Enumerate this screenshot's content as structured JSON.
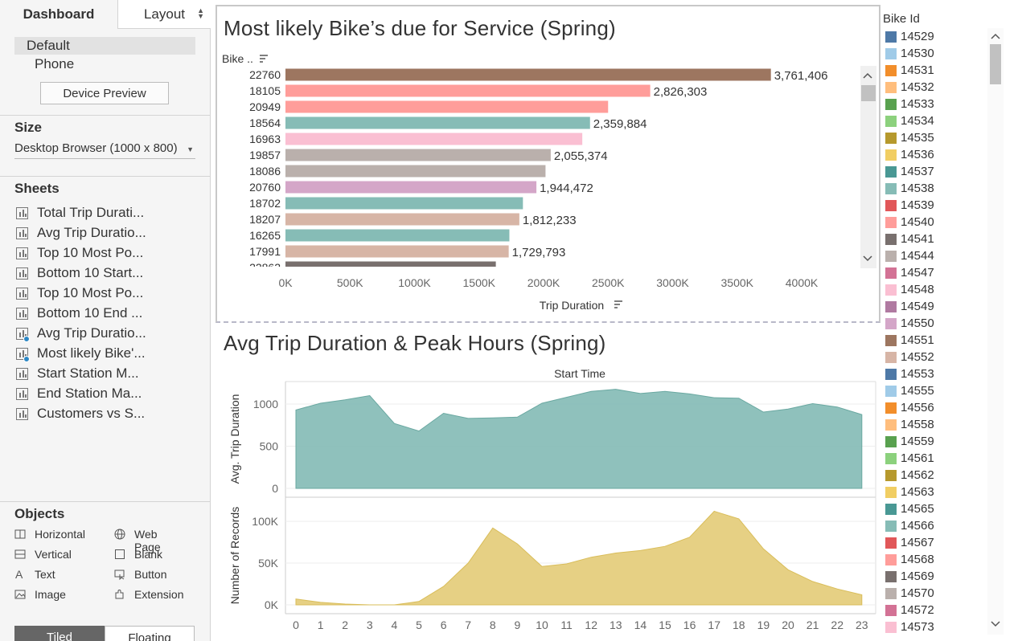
{
  "tabs": {
    "dashboard": "Dashboard",
    "layout": "Layout"
  },
  "device": {
    "default": "Default",
    "phone": "Phone",
    "preview_button": "Device Preview"
  },
  "size": {
    "title": "Size",
    "value": "Desktop Browser (1000 x 800)"
  },
  "sheets": {
    "title": "Sheets",
    "items": [
      {
        "label": "Total Trip Durati...",
        "checked": false
      },
      {
        "label": "Avg Trip Duratio...",
        "checked": false
      },
      {
        "label": "Top 10 Most Po...",
        "checked": false
      },
      {
        "label": "Bottom 10 Start...",
        "checked": false
      },
      {
        "label": "Top 10 Most Po...",
        "checked": false
      },
      {
        "label": "Bottom 10 End ...",
        "checked": false
      },
      {
        "label": "Avg Trip Duratio...",
        "checked": true
      },
      {
        "label": "Most likely Bike'...",
        "checked": true
      },
      {
        "label": "Start Station M...",
        "checked": false
      },
      {
        "label": "End Station Ma...",
        "checked": false
      },
      {
        "label": "Customers vs S...",
        "checked": false
      }
    ]
  },
  "objects": {
    "title": "Objects",
    "items": [
      {
        "label": "Horizontal",
        "icon": "horizontal-icon"
      },
      {
        "label": "Web Page",
        "icon": "globe-icon"
      },
      {
        "label": "Vertical",
        "icon": "vertical-icon"
      },
      {
        "label": "Blank",
        "icon": "blank-icon"
      },
      {
        "label": "Text",
        "icon": "text-icon"
      },
      {
        "label": "Button",
        "icon": "button-icon"
      },
      {
        "label": "Image",
        "icon": "image-icon"
      },
      {
        "label": "Extension",
        "icon": "extension-icon"
      }
    ]
  },
  "layout_toggle": {
    "tiled": "Tiled",
    "floating": "Floating"
  },
  "legend": {
    "title": "Bike Id",
    "items": [
      {
        "id": "14529",
        "color": "#4e79a7"
      },
      {
        "id": "14530",
        "color": "#a0cbe8"
      },
      {
        "id": "14531",
        "color": "#f28e2b"
      },
      {
        "id": "14532",
        "color": "#ffbe7d"
      },
      {
        "id": "14533",
        "color": "#59a14f"
      },
      {
        "id": "14534",
        "color": "#8cd17d"
      },
      {
        "id": "14535",
        "color": "#b6992d"
      },
      {
        "id": "14536",
        "color": "#f1ce63"
      },
      {
        "id": "14537",
        "color": "#499894"
      },
      {
        "id": "14538",
        "color": "#86bcb6"
      },
      {
        "id": "14539",
        "color": "#e15759"
      },
      {
        "id": "14540",
        "color": "#ff9d9a"
      },
      {
        "id": "14541",
        "color": "#79706e"
      },
      {
        "id": "14544",
        "color": "#bab0ac"
      },
      {
        "id": "14547",
        "color": "#d37295"
      },
      {
        "id": "14548",
        "color": "#fabfd2"
      },
      {
        "id": "14549",
        "color": "#b07aa1"
      },
      {
        "id": "14550",
        "color": "#d4a6c8"
      },
      {
        "id": "14551",
        "color": "#9d7660"
      },
      {
        "id": "14552",
        "color": "#d7b5a6"
      },
      {
        "id": "14553",
        "color": "#4e79a7"
      },
      {
        "id": "14555",
        "color": "#a0cbe8"
      },
      {
        "id": "14556",
        "color": "#f28e2b"
      },
      {
        "id": "14558",
        "color": "#ffbe7d"
      },
      {
        "id": "14559",
        "color": "#59a14f"
      },
      {
        "id": "14561",
        "color": "#8cd17d"
      },
      {
        "id": "14562",
        "color": "#b6992d"
      },
      {
        "id": "14563",
        "color": "#f1ce63"
      },
      {
        "id": "14565",
        "color": "#499894"
      },
      {
        "id": "14566",
        "color": "#86bcb6"
      },
      {
        "id": "14567",
        "color": "#e15759"
      },
      {
        "id": "14568",
        "color": "#ff9d9a"
      },
      {
        "id": "14569",
        "color": "#79706e"
      },
      {
        "id": "14570",
        "color": "#bab0ac"
      },
      {
        "id": "14572",
        "color": "#d37295"
      },
      {
        "id": "14573",
        "color": "#fabfd2"
      }
    ]
  },
  "chart_data": [
    {
      "type": "bar",
      "orientation": "horizontal",
      "title": "Most likely Bike’s due for Service (Spring)",
      "category_header": "Bike ..",
      "xlabel": "Trip Duration",
      "xlim": [
        0,
        4400000
      ],
      "x_ticks": [
        "0K",
        "500K",
        "1000K",
        "1500K",
        "2000K",
        "2500K",
        "3000K",
        "3500K",
        "4000K"
      ],
      "categories": [
        "22760",
        "18105",
        "20949",
        "18564",
        "16963",
        "19857",
        "18086",
        "20760",
        "18702",
        "18207",
        "16265",
        "17991",
        "22862"
      ],
      "values": [
        3761406,
        2826303,
        2500000,
        2359884,
        2300000,
        2055374,
        2015000,
        1944472,
        1840000,
        1812233,
        1735000,
        1729793,
        1630000
      ],
      "data_labels": [
        "3,761,406",
        "2,826,303",
        "",
        "2,359,884",
        "",
        "2,055,374",
        "",
        "1,944,472",
        "",
        "1,812,233",
        "",
        "1,729,793",
        ""
      ],
      "colors": [
        "#9d7660",
        "#ff9d9a",
        "#ff9d9a",
        "#86bcb6",
        "#fabfd2",
        "#bab0ac",
        "#bab0ac",
        "#d4a6c8",
        "#86bcb6",
        "#d7b5a6",
        "#86bcb6",
        "#d7b5a6",
        "#79706e"
      ]
    },
    {
      "type": "area",
      "title": "Avg Trip Duration & Peak Hours (Spring)",
      "xlabel": "Start Time",
      "x": [
        0,
        1,
        2,
        3,
        4,
        5,
        6,
        7,
        8,
        9,
        10,
        11,
        12,
        13,
        14,
        15,
        16,
        17,
        18,
        19,
        20,
        21,
        22,
        23
      ],
      "panels": [
        {
          "ylabel": "Avg. Trip Duration",
          "ylim": [
            0,
            1250
          ],
          "y_ticks": [
            "0",
            "500",
            "1000"
          ],
          "color": "#86bcb6",
          "values": [
            930,
            1010,
            1050,
            1100,
            770,
            680,
            890,
            830,
            835,
            845,
            1010,
            1080,
            1150,
            1175,
            1125,
            1150,
            1120,
            1075,
            1070,
            905,
            940,
            1005,
            965,
            875
          ]
        },
        {
          "ylabel": "Number of Records",
          "ylim": [
            0,
            115000
          ],
          "y_ticks": [
            "0K",
            "50K",
            "100K"
          ],
          "color": "#e4cc79",
          "values": [
            7000,
            3000,
            1000,
            0,
            0,
            4000,
            22000,
            50000,
            92000,
            73000,
            46000,
            49000,
            57000,
            62000,
            65000,
            70000,
            81000,
            112000,
            103000,
            67000,
            42000,
            28000,
            19000,
            12000
          ]
        }
      ]
    }
  ]
}
